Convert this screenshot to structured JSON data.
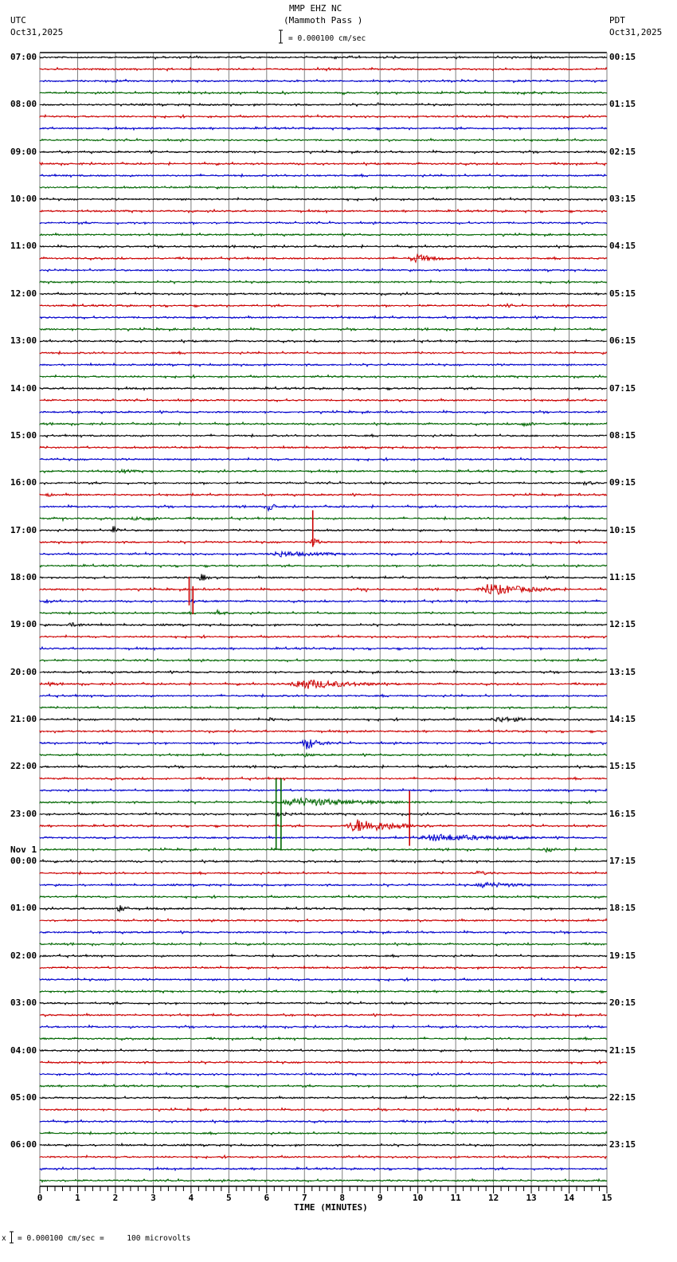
{
  "header": {
    "station": "MMP EHZ NC",
    "location": "(Mammoth Pass )",
    "scale_text": "= 0.000100 cm/sec",
    "left_tz": "UTC",
    "left_date": "Oct31,2025",
    "right_tz": "PDT",
    "right_date": "Oct31,2025"
  },
  "footer": {
    "scale_note": "= 0.000100 cm/sec =     100 microvolts",
    "marker": "x"
  },
  "colors": {
    "trace_cycle": [
      "#000000",
      "#cc0000",
      "#0000cc",
      "#006600"
    ],
    "grid": "#808080",
    "frame": "#000000"
  },
  "chart_data": {
    "type": "line",
    "title": "MMP EHZ NC (Mammoth Pass )",
    "subtitle": "= 0.000100 cm/sec",
    "xlabel": "TIME (MINUTES)",
    "ylabel": "",
    "xlim": [
      0,
      15
    ],
    "x_ticks": [
      "0",
      "1",
      "2",
      "3",
      "4",
      "5",
      "6",
      "7",
      "8",
      "9",
      "10",
      "11",
      "12",
      "13",
      "14",
      "15"
    ],
    "traces_per_hour": 4,
    "trace_minutes": 15,
    "trace_count": 96,
    "left_labels": [
      {
        "row": 0,
        "text": "07:00"
      },
      {
        "row": 4,
        "text": "08:00"
      },
      {
        "row": 8,
        "text": "09:00"
      },
      {
        "row": 12,
        "text": "10:00"
      },
      {
        "row": 16,
        "text": "11:00"
      },
      {
        "row": 20,
        "text": "12:00"
      },
      {
        "row": 24,
        "text": "13:00"
      },
      {
        "row": 28,
        "text": "14:00"
      },
      {
        "row": 32,
        "text": "15:00"
      },
      {
        "row": 36,
        "text": "16:00"
      },
      {
        "row": 40,
        "text": "17:00"
      },
      {
        "row": 44,
        "text": "18:00"
      },
      {
        "row": 48,
        "text": "19:00"
      },
      {
        "row": 52,
        "text": "20:00"
      },
      {
        "row": 56,
        "text": "21:00"
      },
      {
        "row": 60,
        "text": "22:00"
      },
      {
        "row": 64,
        "text": "23:00"
      },
      {
        "row": 68,
        "text": "00:00",
        "date": "Nov 1"
      },
      {
        "row": 72,
        "text": "01:00"
      },
      {
        "row": 76,
        "text": "02:00"
      },
      {
        "row": 80,
        "text": "03:00"
      },
      {
        "row": 84,
        "text": "04:00"
      },
      {
        "row": 88,
        "text": "05:00"
      },
      {
        "row": 92,
        "text": "06:00"
      }
    ],
    "right_labels": [
      {
        "row": 0,
        "text": "00:15"
      },
      {
        "row": 4,
        "text": "01:15"
      },
      {
        "row": 8,
        "text": "02:15"
      },
      {
        "row": 12,
        "text": "03:15"
      },
      {
        "row": 16,
        "text": "04:15"
      },
      {
        "row": 20,
        "text": "05:15"
      },
      {
        "row": 24,
        "text": "06:15"
      },
      {
        "row": 28,
        "text": "07:15"
      },
      {
        "row": 32,
        "text": "08:15"
      },
      {
        "row": 36,
        "text": "09:15"
      },
      {
        "row": 40,
        "text": "10:15"
      },
      {
        "row": 44,
        "text": "11:15"
      },
      {
        "row": 48,
        "text": "12:15"
      },
      {
        "row": 52,
        "text": "13:15"
      },
      {
        "row": 56,
        "text": "14:15"
      },
      {
        "row": 60,
        "text": "15:15"
      },
      {
        "row": 64,
        "text": "16:15"
      },
      {
        "row": 68,
        "text": "17:15"
      },
      {
        "row": 72,
        "text": "18:15"
      },
      {
        "row": 76,
        "text": "19:15"
      },
      {
        "row": 80,
        "text": "20:15"
      },
      {
        "row": 84,
        "text": "21:15"
      },
      {
        "row": 88,
        "text": "22:15"
      },
      {
        "row": 92,
        "text": "23:15"
      }
    ],
    "events": [
      {
        "row": 4,
        "start_min": 8.9,
        "dur_min": 0.3,
        "amp": 3
      },
      {
        "row": 17,
        "start_min": 9.7,
        "dur_min": 1.4,
        "amp": 6
      },
      {
        "row": 21,
        "start_min": 12.3,
        "dur_min": 0.3,
        "amp": 4
      },
      {
        "row": 31,
        "start_min": 12.6,
        "dur_min": 1.2,
        "amp": 3
      },
      {
        "row": 35,
        "start_min": 2.0,
        "dur_min": 1.0,
        "amp": 3
      },
      {
        "row": 36,
        "start_min": 14.3,
        "dur_min": 0.7,
        "amp": 3
      },
      {
        "row": 37,
        "start_min": 0.1,
        "dur_min": 0.5,
        "amp": 3
      },
      {
        "row": 38,
        "start_min": 6.0,
        "dur_min": 0.4,
        "amp": 8
      },
      {
        "row": 39,
        "start_min": 0.6,
        "dur_min": 0.1,
        "amp": 8
      },
      {
        "row": 39,
        "start_min": 2.3,
        "dur_min": 2.0,
        "amp": 3
      },
      {
        "row": 40,
        "start_min": 1.9,
        "dur_min": 0.3,
        "amp": 7
      },
      {
        "row": 41,
        "start_min": 7.15,
        "dur_min": 0.4,
        "amp": 7
      },
      {
        "row": 42,
        "start_min": 5.9,
        "dur_min": 3.0,
        "amp": 4
      },
      {
        "row": 44,
        "start_min": 4.2,
        "dur_min": 0.4,
        "amp": 6
      },
      {
        "row": 45,
        "start_min": 11.5,
        "dur_min": 2.5,
        "amp": 8
      },
      {
        "row": 45,
        "start_min": 8.6,
        "dur_min": 0.2,
        "amp": 4
      },
      {
        "row": 46,
        "start_min": 0.1,
        "dur_min": 0.5,
        "amp": 3
      },
      {
        "row": 47,
        "start_min": 4.6,
        "dur_min": 0.6,
        "amp": 4
      },
      {
        "row": 48,
        "start_min": 0.6,
        "dur_min": 1.4,
        "amp": 3
      },
      {
        "row": 53,
        "start_min": 6.5,
        "dur_min": 3.0,
        "amp": 7
      },
      {
        "row": 53,
        "start_min": 0.2,
        "dur_min": 0.3,
        "amp": 4
      },
      {
        "row": 56,
        "start_min": 11.8,
        "dur_min": 2.2,
        "amp": 4
      },
      {
        "row": 56,
        "start_min": 6.0,
        "dur_min": 0.5,
        "amp": 3
      },
      {
        "row": 58,
        "start_min": 6.9,
        "dur_min": 0.8,
        "amp": 9
      },
      {
        "row": 59,
        "start_min": 6.9,
        "dur_min": 0.6,
        "amp": 3
      },
      {
        "row": 62,
        "start_min": 3.7,
        "dur_min": 0.8,
        "amp": 2
      },
      {
        "row": 63,
        "start_min": 6.2,
        "dur_min": 4.2,
        "amp": 6
      },
      {
        "row": 64,
        "start_min": 6.2,
        "dur_min": 0.8,
        "amp": 4
      },
      {
        "row": 65,
        "start_min": 8.0,
        "dur_min": 2.6,
        "amp": 9
      },
      {
        "row": 66,
        "start_min": 9.8,
        "dur_min": 4.4,
        "amp": 5
      },
      {
        "row": 67,
        "start_min": 13.3,
        "dur_min": 0.6,
        "amp": 4
      },
      {
        "row": 69,
        "start_min": 11.4,
        "dur_min": 1.2,
        "amp": 3
      },
      {
        "row": 70,
        "start_min": 11.4,
        "dur_min": 2.5,
        "amp": 4
      },
      {
        "row": 72,
        "start_min": 2.0,
        "dur_min": 0.6,
        "amp": 5
      }
    ],
    "spikes": [
      {
        "row": 41,
        "min": 7.22,
        "up": 40,
        "down": 6
      },
      {
        "row": 45,
        "min": 3.95,
        "up": 16,
        "down": 20
      },
      {
        "row": 45,
        "min": 4.05,
        "up": 4,
        "down": 31
      },
      {
        "row": 63,
        "min": 6.25,
        "up": 30,
        "down": 60
      },
      {
        "row": 63,
        "min": 6.38,
        "up": 30,
        "down": 60
      },
      {
        "row": 65,
        "min": 9.78,
        "up": 44,
        "down": 25
      }
    ]
  }
}
